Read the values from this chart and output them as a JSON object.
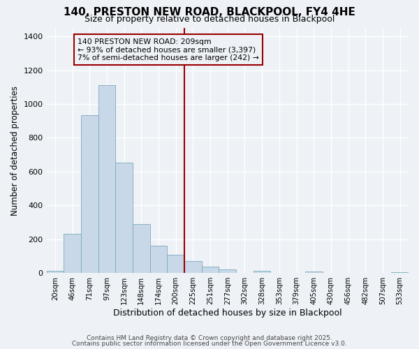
{
  "title": "140, PRESTON NEW ROAD, BLACKPOOL, FY4 4HE",
  "subtitle": "Size of property relative to detached houses in Blackpool",
  "xlabel": "Distribution of detached houses by size in Blackpool",
  "ylabel": "Number of detached properties",
  "bar_labels": [
    "20sqm",
    "46sqm",
    "71sqm",
    "97sqm",
    "123sqm",
    "148sqm",
    "174sqm",
    "200sqm",
    "225sqm",
    "251sqm",
    "277sqm",
    "302sqm",
    "328sqm",
    "353sqm",
    "379sqm",
    "405sqm",
    "430sqm",
    "456sqm",
    "482sqm",
    "507sqm",
    "533sqm"
  ],
  "bar_heights": [
    15,
    230,
    935,
    1110,
    655,
    290,
    160,
    110,
    70,
    40,
    20,
    0,
    15,
    0,
    0,
    10,
    0,
    0,
    0,
    0,
    5
  ],
  "bar_color": "#c8d8e8",
  "bar_edge_color": "#7aaabb",
  "vline_x": 7.5,
  "vline_color": "#990000",
  "annotation_title": "140 PRESTON NEW ROAD: 209sqm",
  "annotation_line1": "← 93% of detached houses are smaller (3,397)",
  "annotation_line2": "7% of semi-detached houses are larger (242) →",
  "annotation_box_edge": "#990000",
  "ylim": [
    0,
    1450
  ],
  "yticks": [
    0,
    200,
    400,
    600,
    800,
    1000,
    1200,
    1400
  ],
  "footnote1": "Contains HM Land Registry data © Crown copyright and database right 2025.",
  "footnote2": "Contains public sector information licensed under the Open Government Licence v3.0.",
  "bg_color": "#eef2f7",
  "grid_color": "#ffffff"
}
